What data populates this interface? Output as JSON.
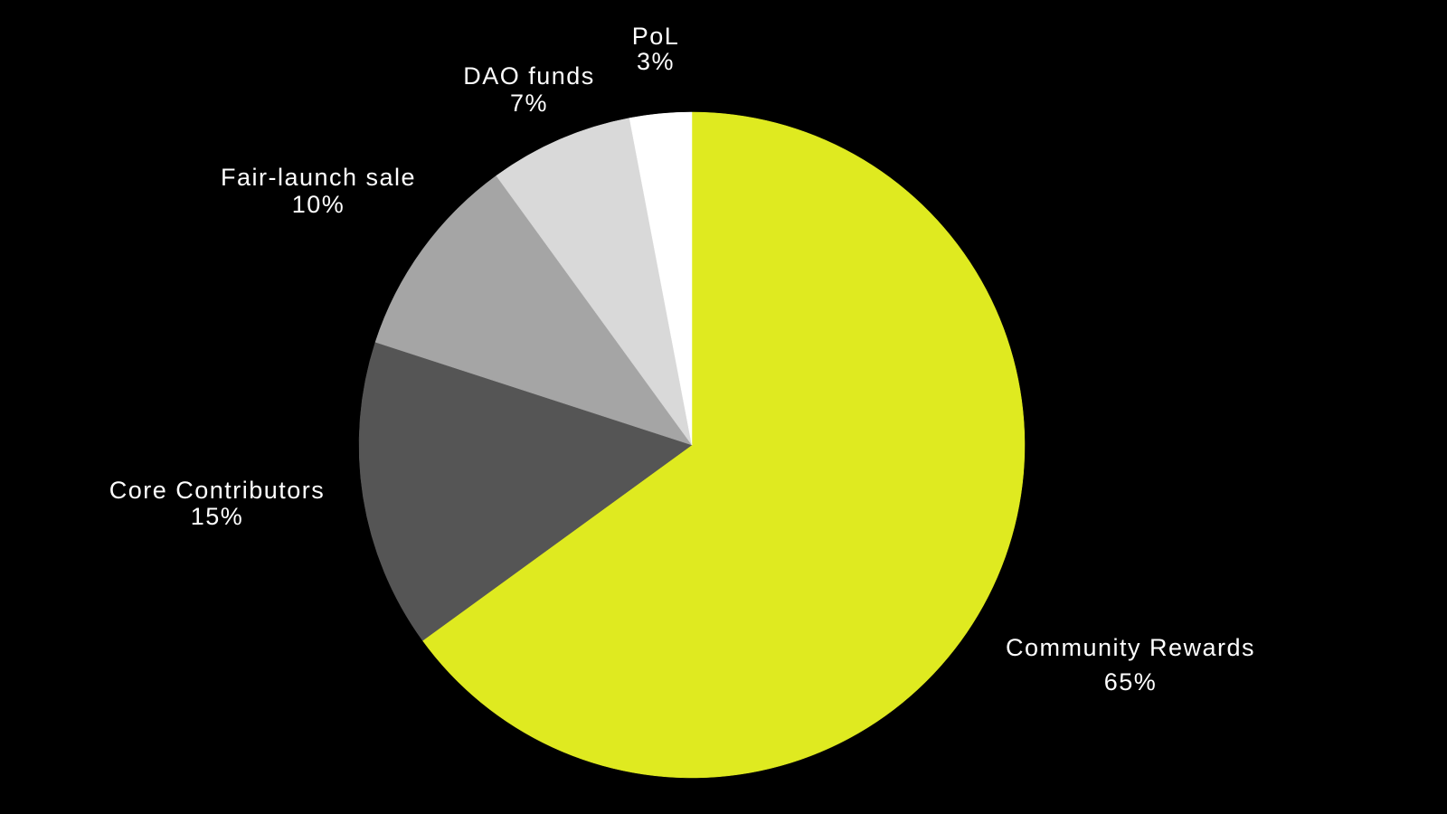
{
  "chart_data": {
    "type": "pie",
    "title": "",
    "slices": [
      {
        "label": "Community Rewards",
        "value": 65,
        "value_label": "65%",
        "color": "#dfea20"
      },
      {
        "label": "Core Contributors",
        "value": 15,
        "value_label": "15%",
        "color": "#555555"
      },
      {
        "label": "Fair-launch sale",
        "value": 10,
        "value_label": "10%",
        "color": "#a5a5a5"
      },
      {
        "label": "DAO funds",
        "value": 7,
        "value_label": "7%",
        "color": "#d9d9d9"
      },
      {
        "label": "PoL",
        "value": 3,
        "value_label": "3%",
        "color": "#ffffff"
      }
    ],
    "start_angle": "12 o'clock",
    "direction": "clockwise",
    "background": "#000000",
    "label_color": "#ffffff",
    "legend": "none"
  }
}
